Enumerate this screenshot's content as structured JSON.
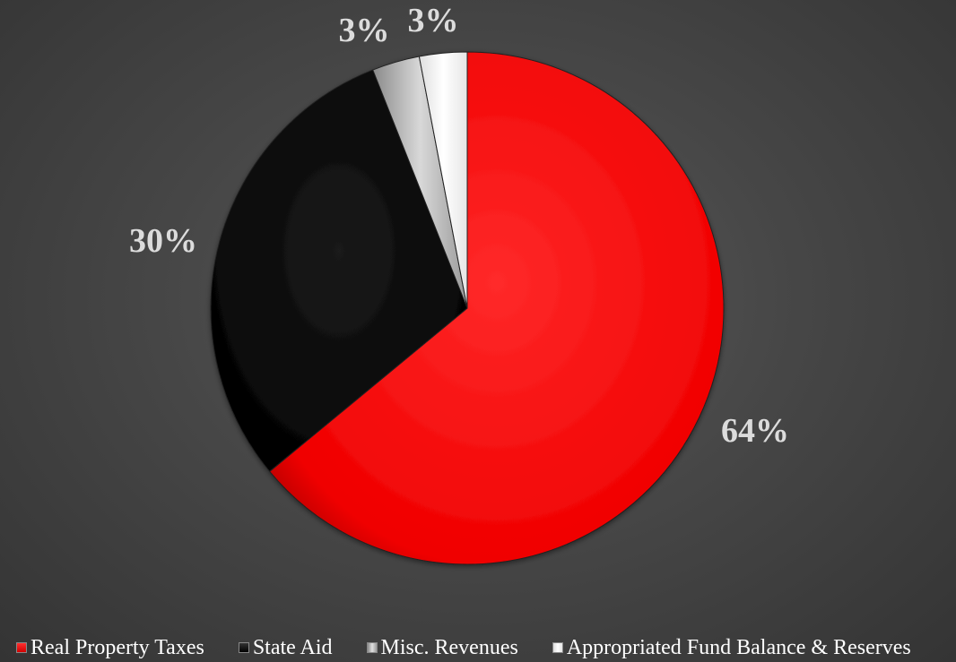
{
  "chart_data": {
    "type": "pie",
    "categories": [
      "Real Property Taxes",
      "State Aid",
      "Misc. Revenues",
      "Appropriated Fund Balance & Reserves"
    ],
    "values": [
      64,
      30,
      3,
      3
    ],
    "data_labels": [
      "64%",
      "30%",
      "3%",
      "3%"
    ],
    "colors": [
      "#ff0000",
      "#0a0a0a",
      "#c8c8c8",
      "#ffffff"
    ],
    "legend_position": "bottom",
    "start_angle_deg": 0,
    "direction": "clockwise"
  }
}
